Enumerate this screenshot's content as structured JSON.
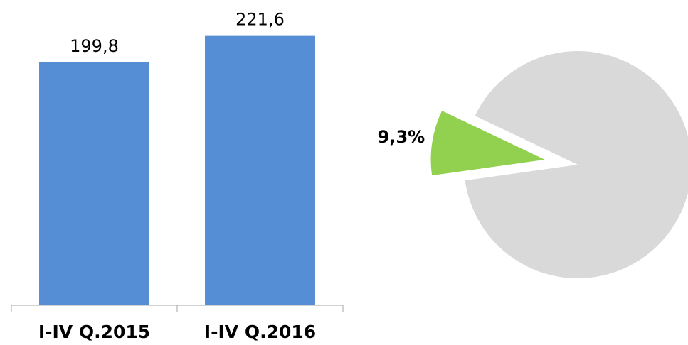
{
  "chart_data": [
    {
      "type": "bar",
      "categories": [
        "I-IV Q.2015",
        "I-IV Q.2016"
      ],
      "values": [
        199.8,
        221.6
      ],
      "value_labels": [
        "199,8",
        "221,6"
      ],
      "color": "#558ed5",
      "ylim": [
        0,
        250
      ]
    },
    {
      "type": "pie",
      "values": [
        9.3,
        90.7
      ],
      "value_labels": [
        "9,3%",
        null
      ],
      "colors": [
        "#92d050",
        "#d9d9d9"
      ]
    }
  ]
}
